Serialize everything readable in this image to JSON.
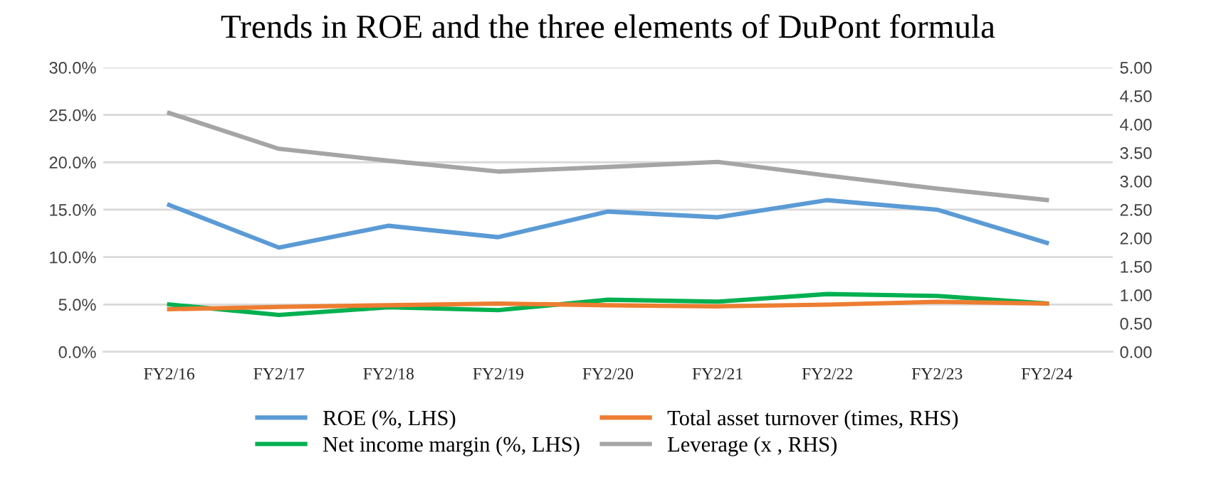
{
  "chart_data": {
    "type": "line",
    "title": "Trends in ROE and the three elements of DuPont formula",
    "categories": [
      "FY2/16",
      "FY2/17",
      "FY2/18",
      "FY2/19",
      "FY2/20",
      "FY2/21",
      "FY2/22",
      "FY2/23",
      "FY2/24"
    ],
    "series": [
      {
        "name": "ROE (%, LHS)",
        "color": "#5b9bd5",
        "values": [
          15.5,
          11.0,
          13.3,
          12.1,
          14.8,
          14.2,
          16.0,
          15.0,
          11.5
        ]
      },
      {
        "name": "Net income margin (%, LHS)",
        "color": "#00b050",
        "values": [
          5.0,
          3.9,
          4.7,
          4.4,
          5.5,
          5.3,
          6.1,
          5.9,
          5.1
        ]
      },
      {
        "name": "Total asset turnover (times, RHS)",
        "color": "#ed7d31",
        "axis": "y2",
        "values": [
          0.75,
          0.79,
          0.82,
          0.85,
          0.82,
          0.8,
          0.83,
          0.88,
          0.85
        ]
      },
      {
        "name": "Leverage (x , RHS)",
        "color": "#a5a5a5",
        "axis": "y2",
        "values": [
          4.2,
          3.57,
          3.36,
          3.17,
          3.25,
          3.34,
          3.1,
          2.87,
          2.67
        ]
      }
    ],
    "ylim": [
      0,
      30
    ],
    "yticks": [
      {
        "value": 0,
        "label": "0.0%"
      },
      {
        "value": 5,
        "label": "5.0%"
      },
      {
        "value": 10,
        "label": "10.0%"
      },
      {
        "value": 15,
        "label": "15.0%"
      },
      {
        "value": 20,
        "label": "20.0%"
      },
      {
        "value": 25,
        "label": "25.0%"
      },
      {
        "value": 30,
        "label": "30.0%"
      }
    ],
    "y2lim": [
      0,
      5
    ],
    "y2ticks": [
      {
        "value": 0,
        "label": "0.00"
      },
      {
        "value": 0.5,
        "label": "0.50"
      },
      {
        "value": 1,
        "label": "1.00"
      },
      {
        "value": 1.5,
        "label": "1.50"
      },
      {
        "value": 2,
        "label": "2.00"
      },
      {
        "value": 2.5,
        "label": "2.50"
      },
      {
        "value": 3,
        "label": "3.00"
      },
      {
        "value": 3.5,
        "label": "3.50"
      },
      {
        "value": 4,
        "label": "4.00"
      },
      {
        "value": 4.5,
        "label": "4.50"
      },
      {
        "value": 5,
        "label": "5.00"
      }
    ],
    "grid": "y",
    "legend": "bottom",
    "marker": "none",
    "line_style": "solid"
  }
}
